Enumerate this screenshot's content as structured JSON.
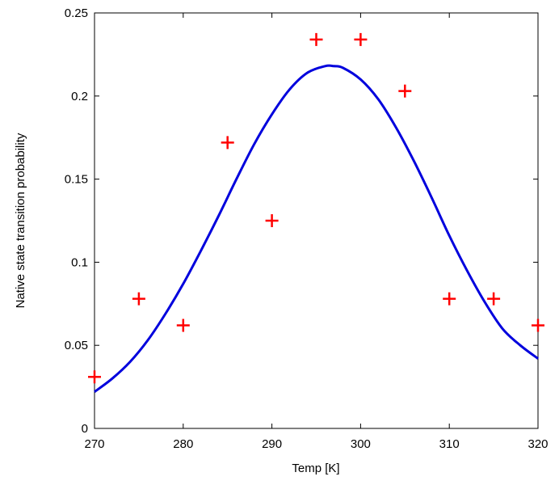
{
  "chart_data": {
    "type": "scatter",
    "xlabel": "Temp [K]",
    "ylabel": "Native state transition probability",
    "xlim": [
      270,
      320
    ],
    "ylim": [
      0,
      0.25
    ],
    "x_ticks": [
      "270",
      "280",
      "290",
      "300",
      "310",
      "320"
    ],
    "y_ticks": [
      "0",
      "0.05",
      "0.1",
      "0.15",
      "0.2",
      "0.25"
    ],
    "grid": false,
    "legend": "none",
    "series": [
      {
        "type": "scatter",
        "marker": "+",
        "color": "#ff0000",
        "x": [
          270,
          275,
          280,
          285,
          290,
          295,
          300,
          305,
          310,
          315,
          320
        ],
        "y": [
          0.031,
          0.078,
          0.062,
          0.172,
          0.125,
          0.234,
          0.234,
          0.203,
          0.078,
          0.078,
          0.062
        ]
      },
      {
        "type": "line",
        "color": "#0000dd",
        "x": [
          270,
          272,
          274,
          276,
          278,
          280,
          282,
          284,
          286,
          288,
          290,
          292,
          294,
          296,
          297,
          298,
          300,
          302,
          304,
          306,
          308,
          310,
          312,
          314,
          316,
          318,
          320
        ],
        "y": [
          0.022,
          0.03,
          0.04,
          0.053,
          0.069,
          0.087,
          0.107,
          0.128,
          0.15,
          0.171,
          0.189,
          0.204,
          0.214,
          0.218,
          0.218,
          0.217,
          0.21,
          0.198,
          0.181,
          0.161,
          0.139,
          0.116,
          0.095,
          0.076,
          0.06,
          0.05,
          0.042
        ]
      }
    ]
  }
}
